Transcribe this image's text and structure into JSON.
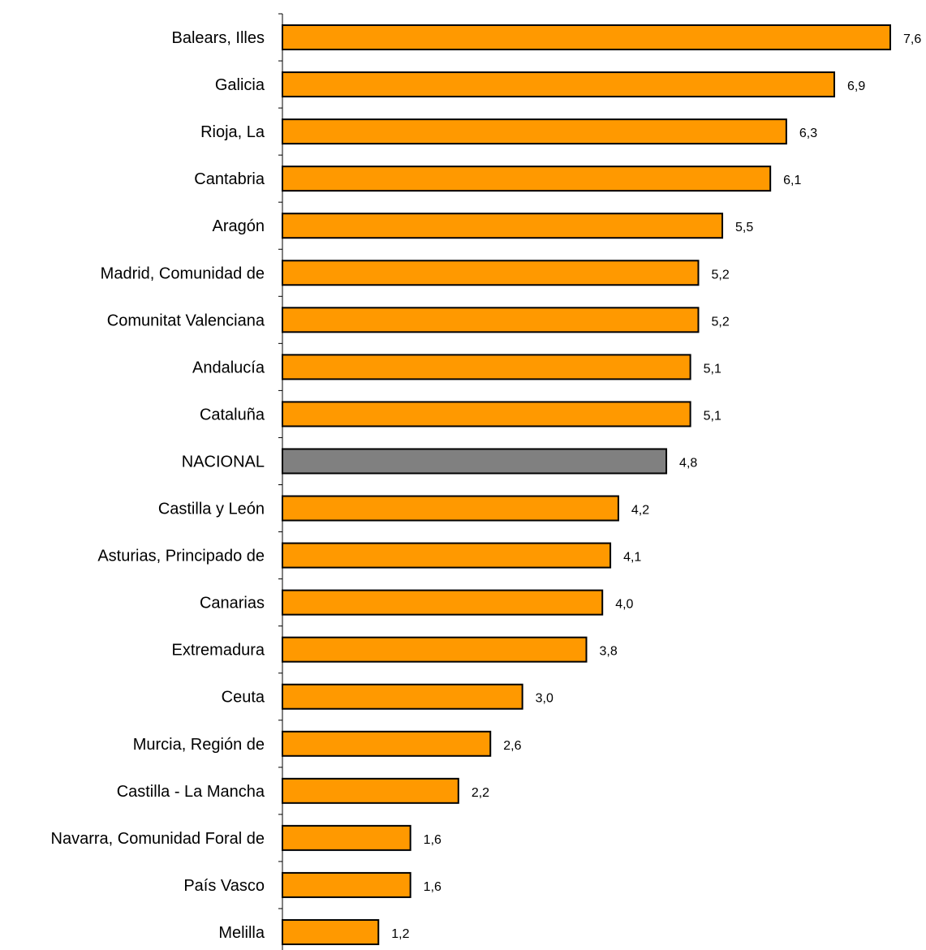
{
  "chart_data": {
    "type": "bar",
    "orientation": "horizontal",
    "title": "",
    "xlabel": "",
    "ylabel": "",
    "grid": false,
    "legend": "none",
    "xlim": [
      0,
      7.6
    ],
    "decimal_separator": ",",
    "colors": {
      "bar": "#FF9900",
      "highlight": "#808080",
      "stroke": "#000000"
    },
    "highlight_category": "NACIONAL",
    "categories": [
      "Balears, Illes",
      "Galicia",
      "Rioja, La",
      "Cantabria",
      "Aragón",
      "Madrid, Comunidad de",
      "Comunitat Valenciana",
      "Andalucía",
      "Cataluña",
      "NACIONAL",
      "Castilla y León",
      "Asturias, Principado de",
      "Canarias",
      "Extremadura",
      "Ceuta",
      "Murcia, Región de",
      "Castilla - La Mancha",
      "Navarra, Comunidad Foral de",
      "País Vasco",
      "Melilla"
    ],
    "values": [
      7.6,
      6.9,
      6.3,
      6.1,
      5.5,
      5.2,
      5.2,
      5.1,
      5.1,
      4.8,
      4.2,
      4.1,
      4.0,
      3.8,
      3.0,
      2.6,
      2.2,
      1.6,
      1.6,
      1.2
    ]
  }
}
